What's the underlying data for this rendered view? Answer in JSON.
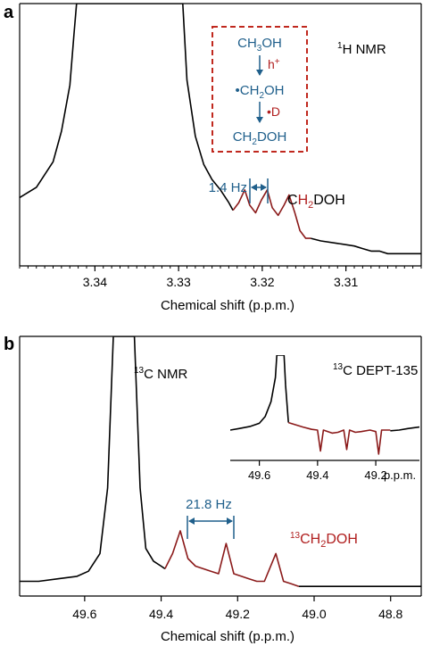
{
  "panels": {
    "a": {
      "label": "a",
      "nucleus_pre": "1",
      "nucleus_post": "H NMR"
    },
    "b": {
      "label": "b",
      "nucleus_pre": "13",
      "nucleus_post": "C NMR"
    }
  },
  "scheme": {
    "line1_a": "CH",
    "line1_sub": "3",
    "line1_b": "OH",
    "arrow1_label": "h",
    "arrow1_sup": "+",
    "line2_dot": "•",
    "line2_a": "CH",
    "line2_sub": "2",
    "line2_b": "OH",
    "arrow2_dot": "•",
    "arrow2_label": "D",
    "line3_a": "CH",
    "line3_sub": "2",
    "line3_b": "DOH"
  },
  "annotations": {
    "a_coupling": "1.4 Hz",
    "a_peak_a": "C",
    "a_peak_h": "H",
    "a_peak_sub": "2",
    "a_peak_b": "DOH",
    "b_coupling": "21.8 Hz",
    "b_peak_sup": "13",
    "b_peak_a": "CH",
    "b_peak_sub": "2",
    "b_peak_b": "DOH",
    "inset_pre": "13",
    "inset_post": "C DEPT-135"
  },
  "colors": {
    "trace": "#000000",
    "highlight": "#8b1a1a",
    "accent_blue": "#1f5f8b",
    "scheme_border": "#c0281e",
    "scheme_red": "#b01e1e"
  },
  "chart_data": [
    {
      "type": "line",
      "panel": "a",
      "xlabel": "Chemical shift (p.p.m.)",
      "ylabel": "",
      "x_reversed": true,
      "xlim": [
        3.349,
        3.301
      ],
      "ylim": [
        0,
        100
      ],
      "x_ticks": [
        3.34,
        3.33,
        3.32,
        3.31
      ],
      "x_tick_labels": [
        "3.34",
        "3.33",
        "3.32",
        "3.31"
      ],
      "series": [
        {
          "style": "black",
          "x": [
            3.349,
            3.347,
            3.345,
            3.344,
            3.343,
            3.3425,
            3.3422,
            3.3295,
            3.329,
            3.328,
            3.327,
            3.326,
            3.325,
            3.324,
            3.3235
          ],
          "y": [
            24,
            28,
            38,
            50,
            68,
            88,
            100,
            100,
            70,
            48,
            37,
            31,
            27,
            22,
            19
          ]
        },
        {
          "style": "highlight",
          "x": [
            3.3235,
            3.3228,
            3.3221,
            3.3215,
            3.3208,
            3.3201,
            3.3194,
            3.3188,
            3.3181,
            3.3174,
            3.3168,
            3.3161,
            3.3155,
            3.3148,
            3.3142
          ],
          "y": [
            19,
            22,
            27,
            21,
            18,
            23,
            27,
            20,
            17,
            21,
            25,
            18,
            11,
            8,
            8
          ]
        },
        {
          "style": "black",
          "x": [
            3.3142,
            3.313,
            3.311,
            3.309,
            3.308,
            3.307,
            3.306,
            3.305,
            3.304,
            3.303,
            3.301
          ],
          "y": [
            8,
            7,
            6,
            5,
            4,
            3,
            3,
            2,
            2,
            2,
            2
          ]
        }
      ]
    },
    {
      "type": "line",
      "panel": "b",
      "xlabel": "Chemical shift (p.p.m.)",
      "ylabel": "",
      "x_reversed": true,
      "xlim": [
        49.77,
        48.72
      ],
      "ylim": [
        0,
        100
      ],
      "x_ticks": [
        49.6,
        49.4,
        49.2,
        49.0,
        48.8
      ],
      "x_tick_labels": [
        "49.6",
        "49.4",
        "49.2",
        "49.0",
        "48.8"
      ],
      "series": [
        {
          "style": "black",
          "x": [
            49.77,
            49.72,
            49.67,
            49.62,
            49.59,
            49.56,
            49.54,
            49.525,
            49.47,
            49.455,
            49.44,
            49.42,
            49.4,
            49.39
          ],
          "y": [
            3,
            3,
            4,
            5,
            7,
            14,
            40,
            100,
            100,
            40,
            16,
            11,
            9,
            8
          ]
        },
        {
          "style": "highlight",
          "x": [
            49.39,
            49.37,
            49.35,
            49.33,
            49.31,
            49.29,
            49.27,
            49.25,
            49.23,
            49.21,
            49.19,
            49.17,
            49.15,
            49.13,
            49.1,
            49.08,
            49.06,
            49.04
          ],
          "y": [
            8,
            14,
            23,
            12,
            9,
            8,
            7,
            6,
            18,
            6,
            5,
            4,
            3,
            3,
            14,
            3,
            2,
            1
          ]
        },
        {
          "style": "black",
          "x": [
            49.04,
            49.0,
            48.95,
            48.9,
            48.85,
            48.8,
            48.75,
            48.72
          ],
          "y": [
            1,
            1,
            1,
            1,
            1,
            1,
            1,
            1
          ]
        }
      ]
    },
    {
      "type": "line",
      "panel": "b-inset",
      "title_pre": "13",
      "title_post": "C DEPT-135",
      "xlabel": "p.p.m.",
      "x_reversed": true,
      "xlim": [
        49.7,
        49.05
      ],
      "ylim": [
        -40,
        100
      ],
      "x_ticks": [
        49.6,
        49.4,
        49.2
      ],
      "x_tick_labels": [
        "49.6",
        "49.4",
        "49.2"
      ],
      "series": [
        {
          "style": "black",
          "x": [
            49.7,
            49.67,
            49.63,
            49.6,
            49.58,
            49.56,
            49.545,
            49.54,
            49.515,
            49.51,
            49.5
          ],
          "y": [
            0,
            2,
            5,
            9,
            18,
            38,
            70,
            100,
            100,
            60,
            10
          ]
        },
        {
          "style": "highlight",
          "x": [
            49.5,
            49.45,
            49.42,
            49.4,
            49.39,
            49.38,
            49.35,
            49.33,
            49.31,
            49.3,
            49.29,
            49.27,
            49.25,
            49.22,
            49.2,
            49.19,
            49.18,
            49.15
          ],
          "y": [
            10,
            4,
            1,
            0,
            -28,
            0,
            -4,
            -3,
            0,
            -26,
            0,
            -3,
            -2,
            0,
            -2,
            -32,
            0,
            0
          ]
        },
        {
          "style": "black",
          "x": [
            49.15,
            49.12,
            49.09,
            49.05
          ],
          "y": [
            -1,
            0,
            2,
            4
          ]
        }
      ]
    }
  ]
}
